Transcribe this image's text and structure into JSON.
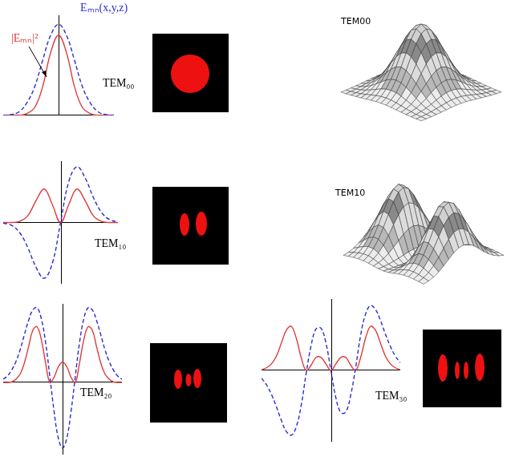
{
  "chart_data": [
    {
      "type": "line",
      "title": "TEM₀₀",
      "tick_labels": false,
      "grid": false,
      "x": [
        -3.5,
        -3,
        -2.5,
        -2,
        -1.5,
        -1,
        -0.5,
        0,
        0.5,
        1,
        1.5,
        2,
        2.5,
        3,
        3.5
      ],
      "xlim": [
        -3.5,
        3.5
      ],
      "ylim": [
        0,
        1.1
      ],
      "series": [
        {
          "name": "Eₘₙ(x,y,z)",
          "color": "#2b2bd6",
          "line_style": "dashed",
          "values": [
            0,
            0.01,
            0.04,
            0.14,
            0.32,
            0.61,
            0.88,
            1,
            0.88,
            0.61,
            0.32,
            0.14,
            0.04,
            0.01,
            0
          ]
        },
        {
          "name": "|Eₘₙ|²",
          "color": "#e03a3a",
          "line_style": "solid",
          "values": [
            0,
            0,
            0,
            0.02,
            0.09,
            0.32,
            0.69,
            0.88,
            0.69,
            0.32,
            0.09,
            0.02,
            0,
            0,
            0
          ]
        }
      ]
    },
    {
      "type": "line",
      "title": "TEM₁₀",
      "tick_labels": false,
      "grid": false,
      "x": [
        -3.5,
        -3,
        -2.5,
        -2,
        -1.5,
        -1,
        -0.5,
        0,
        0.5,
        1,
        1.5,
        2,
        2.5,
        3,
        3.5
      ],
      "xlim": [
        -3.5,
        3.5
      ],
      "ylim": [
        -1.1,
        1.1
      ],
      "series": [
        {
          "color": "#2b2bd6",
          "line_style": "dashed",
          "values": [
            -0.01,
            -0.05,
            -0.18,
            -0.45,
            -0.8,
            -1,
            -0.73,
            0,
            0.73,
            1,
            0.8,
            0.45,
            0.18,
            0.05,
            0.01
          ]
        },
        {
          "color": "#e03a3a",
          "line_style": "solid",
          "values": [
            0,
            0,
            0.02,
            0.12,
            0.39,
            0.6,
            0.32,
            0,
            0.32,
            0.6,
            0.39,
            0.12,
            0.02,
            0,
            0
          ]
        }
      ]
    },
    {
      "type": "line",
      "title": "TEM₂₀",
      "tick_labels": false,
      "grid": false,
      "x": [
        -3.5,
        -3.25,
        -3,
        -2.75,
        -2.5,
        -2.25,
        -2,
        -1.75,
        -1.5,
        -1.25,
        -1,
        -0.75,
        -0.5,
        -0.25,
        0,
        0.25,
        0.5,
        0.75,
        1,
        1.25,
        1.5,
        1.75,
        2,
        2.25,
        2.5,
        2.75,
        3,
        3.25,
        3.5
      ],
      "xlim": [
        -3.5,
        3.5
      ],
      "ylim": [
        -1.1,
        1.2
      ],
      "series": [
        {
          "color": "#2b2bd6",
          "line_style": "dashed",
          "values": [
            0.05,
            0.1,
            0.19,
            0.32,
            0.5,
            0.73,
            0.95,
            1.11,
            1.14,
            0.97,
            0.61,
            0.09,
            -0.44,
            -0.85,
            -1,
            -0.85,
            -0.44,
            0.09,
            0.61,
            0.97,
            1.14,
            1.11,
            0.95,
            0.73,
            0.5,
            0.32,
            0.19,
            0.1,
            0.05
          ]
        },
        {
          "color": "#e03a3a",
          "line_style": "solid",
          "values": [
            0,
            0,
            0.01,
            0.05,
            0.13,
            0.3,
            0.55,
            0.8,
            0.85,
            0.65,
            0.3,
            0,
            0.08,
            0.24,
            0.31,
            0.24,
            0.08,
            0,
            0.3,
            0.65,
            0.85,
            0.8,
            0.55,
            0.3,
            0.13,
            0.05,
            0.01,
            0,
            0
          ]
        }
      ]
    },
    {
      "type": "line",
      "title": "TEM₃₀",
      "tick_labels": false,
      "grid": false,
      "x": [
        -3.5,
        -3.25,
        -3,
        -2.75,
        -2.5,
        -2.25,
        -2,
        -1.75,
        -1.5,
        -1.25,
        -1,
        -0.75,
        -0.5,
        -0.25,
        0,
        0.25,
        0.5,
        0.75,
        1,
        1.25,
        1.5,
        1.75,
        2,
        2.25,
        2.5,
        2.75,
        3,
        3.25,
        3.5
      ],
      "xlim": [
        -3.5,
        3.5
      ],
      "ylim": [
        -1.1,
        1.1
      ],
      "series": [
        {
          "color": "#2b2bd6",
          "line_style": "dashed",
          "values": [
            -0.12,
            -0.22,
            -0.37,
            -0.56,
            -0.77,
            -0.94,
            -1,
            -0.87,
            -0.54,
            -0.05,
            0.38,
            0.64,
            0.65,
            0.42,
            0,
            -0.42,
            -0.65,
            -0.64,
            -0.38,
            0.05,
            0.54,
            0.87,
            1,
            0.94,
            0.77,
            0.56,
            0.37,
            0.22,
            0.12
          ]
        },
        {
          "color": "#e03a3a",
          "line_style": "solid",
          "values": [
            0.01,
            0.04,
            0.1,
            0.22,
            0.42,
            0.62,
            0.68,
            0.5,
            0.2,
            0,
            0.08,
            0.2,
            0.2,
            0.1,
            0,
            0.1,
            0.2,
            0.2,
            0.08,
            0,
            0.2,
            0.5,
            0.68,
            0.62,
            0.42,
            0.22,
            0.1,
            0.04,
            0.01
          ]
        }
      ]
    }
  ],
  "surfaces": [
    {
      "label": "TEM00"
    },
    {
      "label": "TEM10"
    }
  ]
}
